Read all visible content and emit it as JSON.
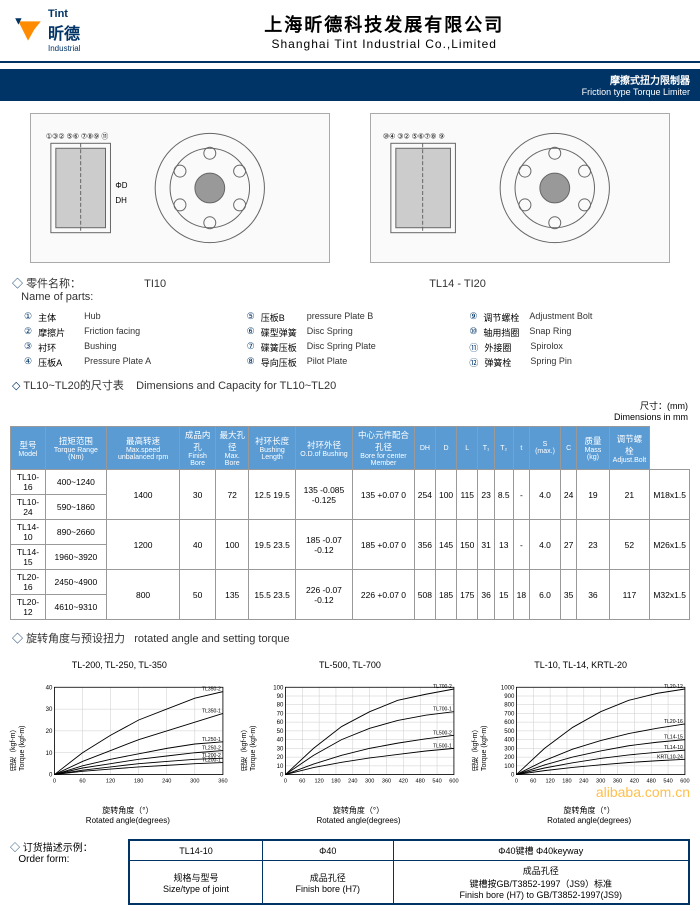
{
  "header": {
    "logo_cn": "昕德",
    "logo_brand": "Tint",
    "logo_en": "Industrial",
    "company_cn": "上海昕德科技发展有限公司",
    "company_en": "Shanghai Tint Industrial Co.,Limited"
  },
  "product_bar": {
    "cn": "摩擦式扭力限制器",
    "en": "Friction type Torque Limiter"
  },
  "diagram_labels": {
    "left": "TI10",
    "right": "TL14 - TI20"
  },
  "parts_title": {
    "cn": "零件名称：",
    "en": "Name of parts:"
  },
  "parts": [
    {
      "n": "①",
      "cn": "主体",
      "en": "Hub"
    },
    {
      "n": "②",
      "cn": "摩擦片",
      "en": "Friction facing"
    },
    {
      "n": "③",
      "cn": "衬环",
      "en": "Bushing"
    },
    {
      "n": "④",
      "cn": "压板A",
      "en": "Pressure Plate A"
    },
    {
      "n": "⑤",
      "cn": "压板B",
      "en": "pressure Plate B"
    },
    {
      "n": "⑥",
      "cn": "碟型弹簧",
      "en": "Disc Spring"
    },
    {
      "n": "⑦",
      "cn": "碟簧压板",
      "en": "Disc Spring Plate"
    },
    {
      "n": "⑧",
      "cn": "导向压板",
      "en": "Pilot Plate"
    },
    {
      "n": "⑨",
      "cn": "调节螺栓",
      "en": "Adjustment Bolt"
    },
    {
      "n": "⑩",
      "cn": "轴用挡圈",
      "en": "Snap Ring"
    },
    {
      "n": "⑪",
      "cn": "外接圈",
      "en": "Spirolox"
    },
    {
      "n": "⑫",
      "cn": "弹簧栓",
      "en": "Spring Pin"
    }
  ],
  "dim_title": {
    "cn": "TL10~TL20的尺寸表",
    "en": "Dimensions and Capacity for TL10~TL20"
  },
  "dim_unit": {
    "cn": "尺寸：(mm)",
    "en": "Dimensions in mm"
  },
  "columns": [
    {
      "cn": "型号",
      "en": "Model"
    },
    {
      "cn": "扭矩范围",
      "en": "Torque Range (Nm)"
    },
    {
      "cn": "最高转速",
      "en": "Max.speed unbalanced rpm"
    },
    {
      "cn": "成品内孔",
      "en": "Finish Bore"
    },
    {
      "cn": "最大孔径",
      "en": "Max. Bore"
    },
    {
      "cn": "衬环长度",
      "en": "Bushing Length"
    },
    {
      "cn": "衬环外径",
      "en": "O.D.of Bushing"
    },
    {
      "cn": "中心元件配合孔径",
      "en": "Bore for center Member"
    },
    {
      "cn": "",
      "en": "DH"
    },
    {
      "cn": "",
      "en": "D"
    },
    {
      "cn": "",
      "en": "L"
    },
    {
      "cn": "",
      "en": "T₁"
    },
    {
      "cn": "",
      "en": "T₂"
    },
    {
      "cn": "",
      "en": "t"
    },
    {
      "cn": "",
      "en": "S (max.)"
    },
    {
      "cn": "",
      "en": "C"
    },
    {
      "cn": "质量",
      "en": "Mass (kg)"
    },
    {
      "cn": "调节螺栓",
      "en": "Adjust.Bolt"
    }
  ],
  "rows": [
    [
      "TL10-16",
      "400~1240",
      "1400",
      "30",
      "72",
      "12.5 19.5",
      "135 -0.085 -0.125",
      "135 +0.07 0",
      "254",
      "100",
      "115",
      "23",
      "8.5",
      "-",
      "4.0",
      "24",
      "19",
      "21",
      "M18x1.5"
    ],
    [
      "TL10-24",
      "590~1860",
      "1400",
      "30",
      "72",
      "12.5 19.5",
      "135 -0.085 -0.125",
      "135 +0.07 0",
      "254",
      "100",
      "115",
      "23",
      "8.5",
      "-",
      "4.0",
      "24",
      "19",
      "21",
      "M18x1.5"
    ],
    [
      "TL14-10",
      "890~2660",
      "1200",
      "40",
      "100",
      "19.5 23.5",
      "185 -0.07 -0.12",
      "185 +0.07 0",
      "356",
      "145",
      "150",
      "31",
      "13",
      "-",
      "4.0",
      "27",
      "23",
      "52",
      "M26x1.5"
    ],
    [
      "TL14-15",
      "1960~3920",
      "1200",
      "40",
      "100",
      "19.5 23.5",
      "185 -0.07 -0.12",
      "185 +0.07 0",
      "356",
      "145",
      "150",
      "31",
      "13",
      "-",
      "4.0",
      "27",
      "23",
      "52",
      "M26x1.5"
    ],
    [
      "TL20-16",
      "2450~4900",
      "800",
      "50",
      "135",
      "15.5 23.5",
      "226 -0.07 -0.12",
      "226 +0.07 0",
      "508",
      "185",
      "175",
      "36",
      "15",
      "18",
      "6.0",
      "35",
      "36",
      "117",
      "M32x1.5"
    ],
    [
      "TL20-12",
      "4610~9310",
      "800",
      "50",
      "135",
      "15.5 23.5",
      "226 -0.07 -0.12",
      "226 +0.07 0",
      "508",
      "185",
      "175",
      "36",
      "15",
      "18",
      "6.0",
      "35",
      "36",
      "117",
      "M32x1.5"
    ]
  ],
  "chart_title": {
    "cn": "旋转角度与预设扭力",
    "en": "rotated angle and setting torque"
  },
  "charts": [
    {
      "title": "TL-200, TL-250, TL-350",
      "xlabel_cn": "旋转角度（°）",
      "xlabel_en": "Rotated angle(degrees)",
      "ylabel_cn": "扭矩（kgf-m）",
      "ylabel_en": "Torque (kgf-m)",
      "xlim": [
        0,
        360
      ],
      "xtick_step": 60,
      "ylim": [
        0,
        40
      ],
      "ytick_step": 10,
      "series": [
        {
          "name": "TL350-2",
          "color": "#000",
          "pts": [
            [
              0,
              0
            ],
            [
              60,
              10
            ],
            [
              120,
              18
            ],
            [
              180,
              25
            ],
            [
              240,
              30
            ],
            [
              300,
              35
            ],
            [
              360,
              38
            ]
          ]
        },
        {
          "name": "TL350-1",
          "color": "#000",
          "pts": [
            [
              0,
              0
            ],
            [
              60,
              6
            ],
            [
              120,
              11
            ],
            [
              180,
              16
            ],
            [
              240,
              20
            ],
            [
              300,
              24
            ],
            [
              360,
              28
            ]
          ]
        },
        {
          "name": "TL250-1",
          "color": "#000",
          "pts": [
            [
              0,
              0
            ],
            [
              60,
              4
            ],
            [
              120,
              7
            ],
            [
              180,
              9.5
            ],
            [
              240,
              12
            ],
            [
              300,
              14
            ],
            [
              360,
              15
            ]
          ]
        },
        {
          "name": "TL250-2",
          "color": "#000",
          "pts": [
            [
              0,
              0
            ],
            [
              60,
              3
            ],
            [
              120,
              5
            ],
            [
              180,
              7
            ],
            [
              240,
              8.5
            ],
            [
              300,
              10
            ],
            [
              360,
              11
            ]
          ]
        },
        {
          "name": "TL200-2",
          "color": "#000",
          "pts": [
            [
              0,
              0
            ],
            [
              60,
              2
            ],
            [
              120,
              3.5
            ],
            [
              180,
              5
            ],
            [
              240,
              6
            ],
            [
              300,
              7
            ],
            [
              360,
              7.5
            ]
          ]
        },
        {
          "name": "TL200-1",
          "color": "#000",
          "pts": [
            [
              0,
              0
            ],
            [
              60,
              1.5
            ],
            [
              120,
              2.5
            ],
            [
              180,
              3.5
            ],
            [
              240,
              4.2
            ],
            [
              300,
              5
            ],
            [
              360,
              5.5
            ]
          ]
        }
      ]
    },
    {
      "title": "TL-500, TL-700",
      "xlabel_cn": "旋转角度（°）",
      "xlabel_en": "Rotated angle(degrees)",
      "ylabel_cn": "扭矩（kgf-m）",
      "ylabel_en": "Torque (kgf-m)",
      "xlim": [
        0,
        600
      ],
      "xtick_step": 60,
      "ylim": [
        0,
        100
      ],
      "ytick_step": 10,
      "series": [
        {
          "name": "TL700-2",
          "color": "#000",
          "pts": [
            [
              0,
              0
            ],
            [
              100,
              30
            ],
            [
              200,
              55
            ],
            [
              300,
              72
            ],
            [
              400,
              85
            ],
            [
              500,
              92
            ],
            [
              600,
              98
            ]
          ]
        },
        {
          "name": "TL700-1",
          "color": "#000",
          "pts": [
            [
              0,
              0
            ],
            [
              100,
              22
            ],
            [
              200,
              40
            ],
            [
              300,
              53
            ],
            [
              400,
              62
            ],
            [
              500,
              68
            ],
            [
              600,
              72
            ]
          ]
        },
        {
          "name": "TL500-2",
          "color": "#000",
          "pts": [
            [
              0,
              0
            ],
            [
              100,
              12
            ],
            [
              200,
              22
            ],
            [
              300,
              30
            ],
            [
              400,
              36
            ],
            [
              500,
              41
            ],
            [
              600,
              45
            ]
          ]
        },
        {
          "name": "TL500-1",
          "color": "#000",
          "pts": [
            [
              0,
              0
            ],
            [
              100,
              8
            ],
            [
              200,
              14
            ],
            [
              300,
              19
            ],
            [
              400,
              23
            ],
            [
              500,
              27
            ],
            [
              600,
              30
            ]
          ]
        }
      ]
    },
    {
      "title": "TL-10, TL-14, KRTL-20",
      "xlabel_cn": "旋转角度（°）",
      "xlabel_en": "Rotated angle(degrees)",
      "ylabel_cn": "扭矩（kgf-m）",
      "ylabel_en": "Torque (kgf-m)",
      "xlim": [
        0,
        600
      ],
      "xtick_step": 60,
      "ylim": [
        0,
        1000
      ],
      "ytick_step": 100,
      "series": [
        {
          "name": "TL20-12",
          "color": "#000",
          "pts": [
            [
              0,
              0
            ],
            [
              100,
              300
            ],
            [
              200,
              540
            ],
            [
              300,
              720
            ],
            [
              400,
              850
            ],
            [
              500,
              930
            ],
            [
              600,
              980
            ]
          ]
        },
        {
          "name": "TL20-16",
          "color": "#000",
          "pts": [
            [
              0,
              0
            ],
            [
              100,
              160
            ],
            [
              200,
              290
            ],
            [
              300,
              390
            ],
            [
              400,
              470
            ],
            [
              500,
              530
            ],
            [
              600,
              580
            ]
          ]
        },
        {
          "name": "TL14-15",
          "color": "#000",
          "pts": [
            [
              0,
              0
            ],
            [
              100,
              110
            ],
            [
              200,
              200
            ],
            [
              300,
              270
            ],
            [
              400,
              330
            ],
            [
              500,
              370
            ],
            [
              600,
              400
            ]
          ]
        },
        {
          "name": "TL14-10",
          "color": "#000",
          "pts": [
            [
              0,
              0
            ],
            [
              100,
              75
            ],
            [
              200,
              135
            ],
            [
              300,
              185
            ],
            [
              400,
              225
            ],
            [
              500,
              255
            ],
            [
              600,
              280
            ]
          ]
        },
        {
          "name": "KRTL10-24",
          "color": "#000",
          "pts": [
            [
              0,
              0
            ],
            [
              100,
              45
            ],
            [
              200,
              82
            ],
            [
              300,
              112
            ],
            [
              400,
              138
            ],
            [
              500,
              158
            ],
            [
              600,
              175
            ]
          ]
        }
      ]
    }
  ],
  "order": {
    "title_cn": "订货描述示例：",
    "title_en": "Order form:",
    "cells": [
      [
        "TL14-10",
        "Φ40",
        "Φ40键槽  Φ40keyway"
      ],
      [
        "规格与型号\nSize/type of joint",
        "成品孔径\nFinish bore (H7)",
        "成品孔径\n键槽按GB/T3852-1997（JS9）标准\nFinish bore (H7) to GB/T3852-1997(JS9)"
      ]
    ]
  },
  "watermark": "alibaba.com.cn",
  "colors": {
    "primary": "#003366",
    "th_bg": "#5a9bd4",
    "logo_orange": "#ff8c00"
  }
}
